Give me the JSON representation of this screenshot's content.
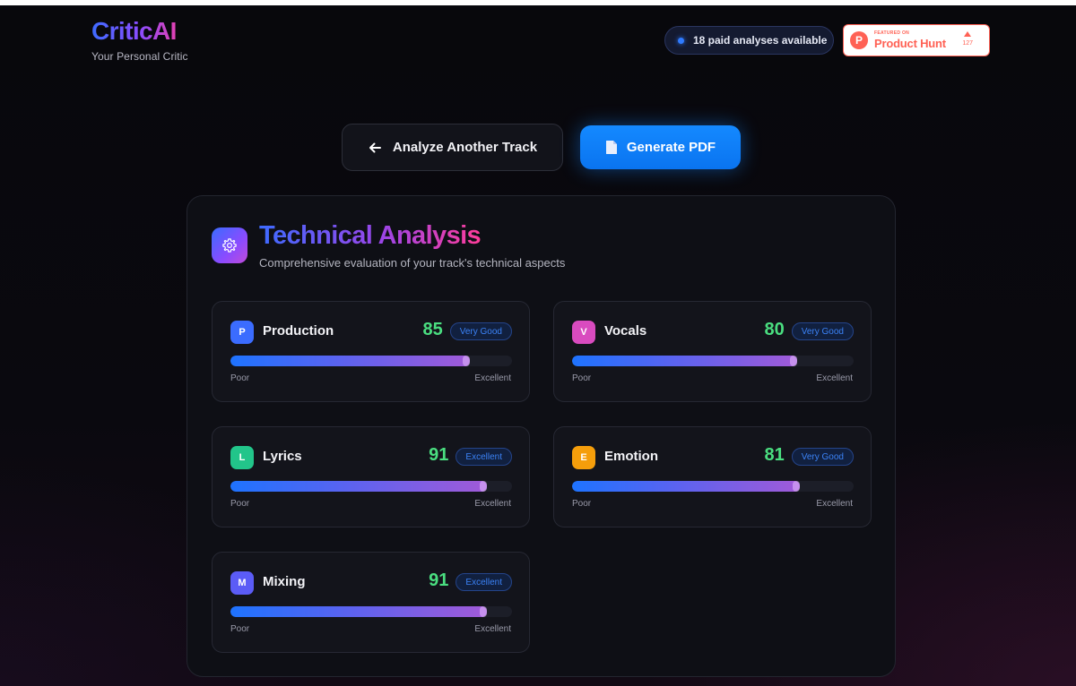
{
  "brand": {
    "name": "CriticAI",
    "tagline": "Your Personal Critic"
  },
  "header": {
    "paid_status": "18 paid analyses available",
    "product_hunt": {
      "small": "FEATURED ON",
      "big": "Product Hunt",
      "votes": "127",
      "logo_letter": "P"
    }
  },
  "actions": {
    "back_label": "Analyze Another Track",
    "pdf_label": "Generate PDF"
  },
  "panel": {
    "title": "Technical Analysis",
    "subtitle": "Comprehensive evaluation of your track's technical aspects",
    "scale_low": "Poor",
    "scale_high": "Excellent",
    "categories": [
      {
        "letter": "P",
        "name": "Production",
        "score": 85,
        "rating": "Very Good",
        "icon_color": "#3b6cff"
      },
      {
        "letter": "V",
        "name": "Vocals",
        "score": 80,
        "rating": "Very Good",
        "icon_color": "#d94bbf"
      },
      {
        "letter": "L",
        "name": "Lyrics",
        "score": 91,
        "rating": "Excellent",
        "icon_color": "#22c58a"
      },
      {
        "letter": "E",
        "name": "Emotion",
        "score": 81,
        "rating": "Very Good",
        "icon_color": "#f59e0b"
      },
      {
        "letter": "M",
        "name": "Mixing",
        "score": 91,
        "rating": "Excellent",
        "icon_color": "#5b5cf6"
      }
    ]
  },
  "colors": {
    "accent_blue": "#1489ff",
    "score_green": "#4ade80",
    "badge_blue": "#3b82f6"
  },
  "icons": {
    "back": "arrow-left-icon",
    "pdf": "document-icon",
    "panel": "gear-icon"
  }
}
